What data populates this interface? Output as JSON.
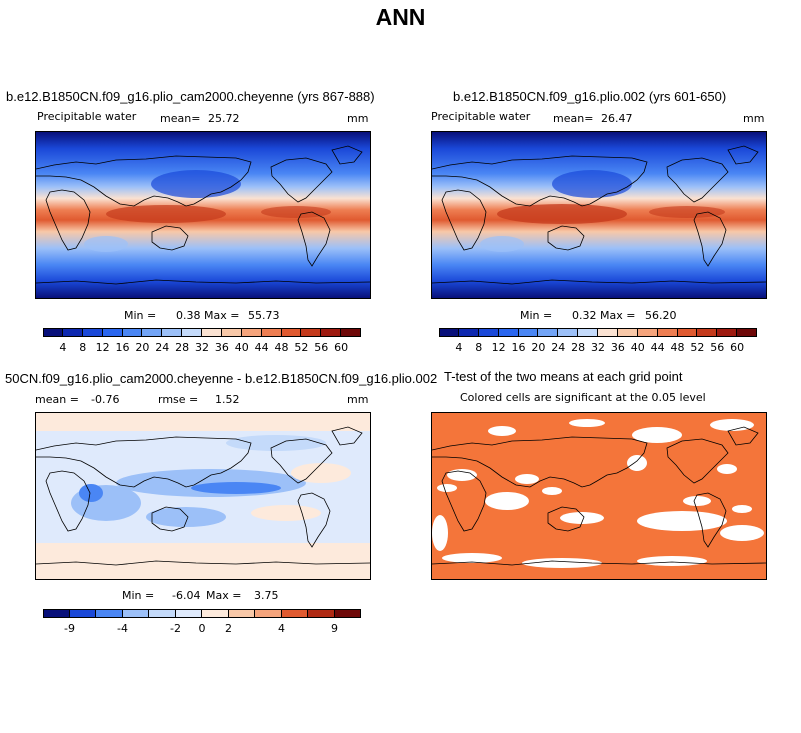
{
  "figure_title": "ANN",
  "panels": {
    "p1": {
      "title": "b.e12.B1850CN.f09_g16.plio_cam2000.cheyenne (yrs 867-888)",
      "variable": "Precipitable water",
      "mean_label": "mean=",
      "mean": "25.72",
      "units": "mm",
      "min_label": "Min =",
      "min": "0.38",
      "max_label": "Max =",
      "max": "55.73"
    },
    "p2": {
      "title": "b.e12.B1850CN.f09_g16.plio.002 (yrs 601-650)",
      "variable": "Precipitable water",
      "mean_label": "mean=",
      "mean": "26.47",
      "units": "mm",
      "min_label": "Min =",
      "min": "0.32",
      "max_label": "Max =",
      "max": "56.20"
    },
    "p3": {
      "title": "50CN.f09_g16.plio_cam2000.cheyenne - b.e12.B1850CN.f09_g16.plio.002",
      "mean_label": "mean =",
      "mean": "-0.76",
      "rmse_label": "rmse =",
      "rmse": "1.52",
      "units": "mm",
      "min_label": "Min =",
      "min": "-6.04",
      "max_label": "Max =",
      "max": "3.75"
    },
    "p4": {
      "title": "T-test of the two means at each grid point",
      "subtitle": "Colored cells are significant at the 0.05 level",
      "sig_color": "#f4753a"
    }
  },
  "colorbars": {
    "abs": {
      "labels": [
        "4",
        "8",
        "12",
        "16",
        "20",
        "24",
        "28",
        "32",
        "36",
        "40",
        "44",
        "48",
        "52",
        "56",
        "60"
      ],
      "colors": [
        "#08107a",
        "#0d28b0",
        "#1a48d8",
        "#2a66ef",
        "#4a86f4",
        "#72a4f6",
        "#9cc0f8",
        "#c4dafa",
        "#fae2d2",
        "#f8c8a8",
        "#f5a47c",
        "#ee7e52",
        "#e05a30",
        "#c43a1c",
        "#9e1a10",
        "#6e0808"
      ]
    },
    "diff": {
      "labels": [
        "-9",
        "-4",
        "-2",
        "0",
        "2",
        "4",
        "9"
      ],
      "colors": [
        "#08107a",
        "#1a48d8",
        "#4a86f4",
        "#9cc0f8",
        "#c4dafa",
        "#dfeafc",
        "#fdeadc",
        "#f8c8a8",
        "#f5a47c",
        "#e05a30",
        "#b02a14",
        "#6e0808"
      ]
    }
  }
}
